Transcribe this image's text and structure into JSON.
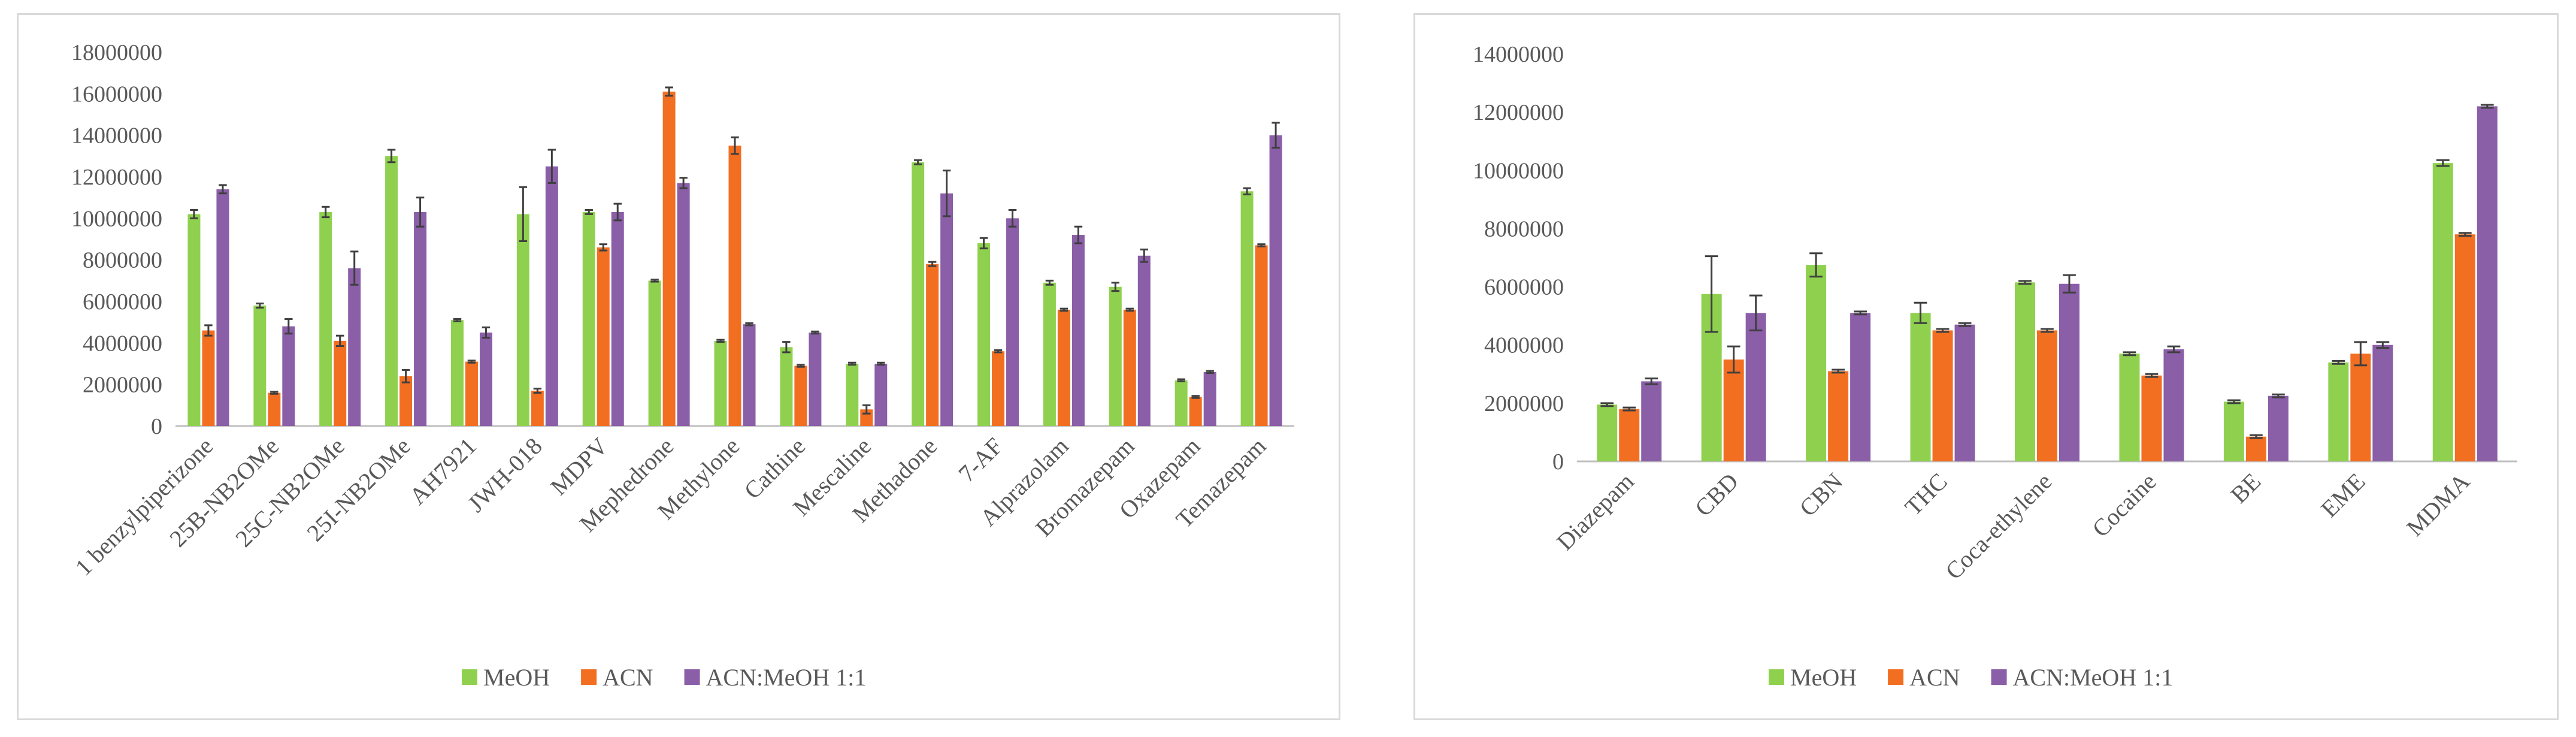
{
  "colors": {
    "MeOH": "#8fd14f",
    "ACN": "#f26f22",
    "ACN:MeOH 1:1": "#8b5ea8",
    "axis": "#bfbfbf",
    "text": "#595959",
    "errorbar": "#3f3f3f"
  },
  "chart_data": [
    {
      "type": "bar",
      "title": "",
      "xlabel": "",
      "ylabel": "",
      "ylim": [
        0,
        18000000
      ],
      "yticks": [
        0,
        2000000,
        4000000,
        6000000,
        8000000,
        10000000,
        12000000,
        14000000,
        16000000,
        18000000
      ],
      "ytick_labels": [
        "0",
        "2000000",
        "4000000",
        "6000000",
        "8000000",
        "10000000",
        "12000000",
        "14000000",
        "16000000",
        "18000000"
      ],
      "grid": false,
      "legend_position": "bottom",
      "categories": [
        "1 benzylpiperizone",
        "25B-NB2OMe",
        "25C-NB2OMe",
        "25I-NB2OMe",
        "AH7921",
        "JWH-018",
        "MDPV",
        "Mephedrone",
        "Methylone",
        "Cathine",
        "Mescaline",
        "Methadone",
        "7-AF",
        "Alprazolam",
        "Bromazepam",
        "Oxazepam",
        "Temazepam"
      ],
      "series": [
        {
          "name": "MeOH",
          "values": [
            10200000,
            5800000,
            10300000,
            13000000,
            5100000,
            10200000,
            10300000,
            7000000,
            4100000,
            3800000,
            3000000,
            12700000,
            8800000,
            6900000,
            6700000,
            2200000,
            11300000
          ],
          "errors": [
            200000,
            100000,
            250000,
            300000,
            50000,
            1300000,
            100000,
            50000,
            50000,
            250000,
            50000,
            100000,
            250000,
            100000,
            200000,
            50000,
            150000
          ]
        },
        {
          "name": "ACN",
          "values": [
            4600000,
            1600000,
            4100000,
            2400000,
            3100000,
            1700000,
            8600000,
            16100000,
            13500000,
            2900000,
            800000,
            7800000,
            3600000,
            5600000,
            5600000,
            1400000,
            8700000
          ],
          "errors": [
            250000,
            50000,
            250000,
            300000,
            50000,
            100000,
            150000,
            200000,
            400000,
            50000,
            200000,
            100000,
            50000,
            50000,
            50000,
            50000,
            50000
          ]
        },
        {
          "name": "ACN:MeOH 1:1",
          "values": [
            11400000,
            4800000,
            7600000,
            10300000,
            4500000,
            12500000,
            10300000,
            11700000,
            4900000,
            4500000,
            3000000,
            11200000,
            10000000,
            9200000,
            8200000,
            2600000,
            14000000
          ],
          "errors": [
            200000,
            350000,
            800000,
            700000,
            250000,
            800000,
            400000,
            250000,
            50000,
            50000,
            50000,
            1100000,
            400000,
            400000,
            300000,
            50000,
            600000
          ]
        }
      ]
    },
    {
      "type": "bar",
      "title": "",
      "xlabel": "",
      "ylabel": "",
      "ylim": [
        0,
        14000000
      ],
      "yticks": [
        0,
        2000000,
        4000000,
        6000000,
        8000000,
        10000000,
        12000000,
        14000000
      ],
      "ytick_labels": [
        "0",
        "2000000",
        "4000000",
        "6000000",
        "8000000",
        "10000000",
        "12000000",
        "14000000"
      ],
      "grid": false,
      "legend_position": "bottom",
      "categories": [
        "Diazepam",
        "CBD",
        "CBN",
        "THC",
        "Coca-ethylene",
        "Cocaine",
        "BE",
        "EME",
        "MDMA"
      ],
      "series": [
        {
          "name": "MeOH",
          "values": [
            1950000,
            5750000,
            6750000,
            5100000,
            6150000,
            3700000,
            2050000,
            3400000,
            10250000
          ],
          "errors": [
            50000,
            1300000,
            400000,
            350000,
            50000,
            50000,
            50000,
            50000,
            100000
          ]
        },
        {
          "name": "ACN",
          "values": [
            1800000,
            3500000,
            3100000,
            4500000,
            4500000,
            2950000,
            850000,
            3700000,
            7800000
          ],
          "errors": [
            50000,
            450000,
            50000,
            50000,
            50000,
            50000,
            50000,
            400000,
            50000
          ]
        },
        {
          "name": "ACN:MeOH 1:1",
          "values": [
            2750000,
            5100000,
            5100000,
            4700000,
            6100000,
            3850000,
            2250000,
            4000000,
            12200000
          ],
          "errors": [
            100000,
            600000,
            50000,
            50000,
            300000,
            100000,
            50000,
            100000,
            50000
          ]
        }
      ]
    }
  ]
}
